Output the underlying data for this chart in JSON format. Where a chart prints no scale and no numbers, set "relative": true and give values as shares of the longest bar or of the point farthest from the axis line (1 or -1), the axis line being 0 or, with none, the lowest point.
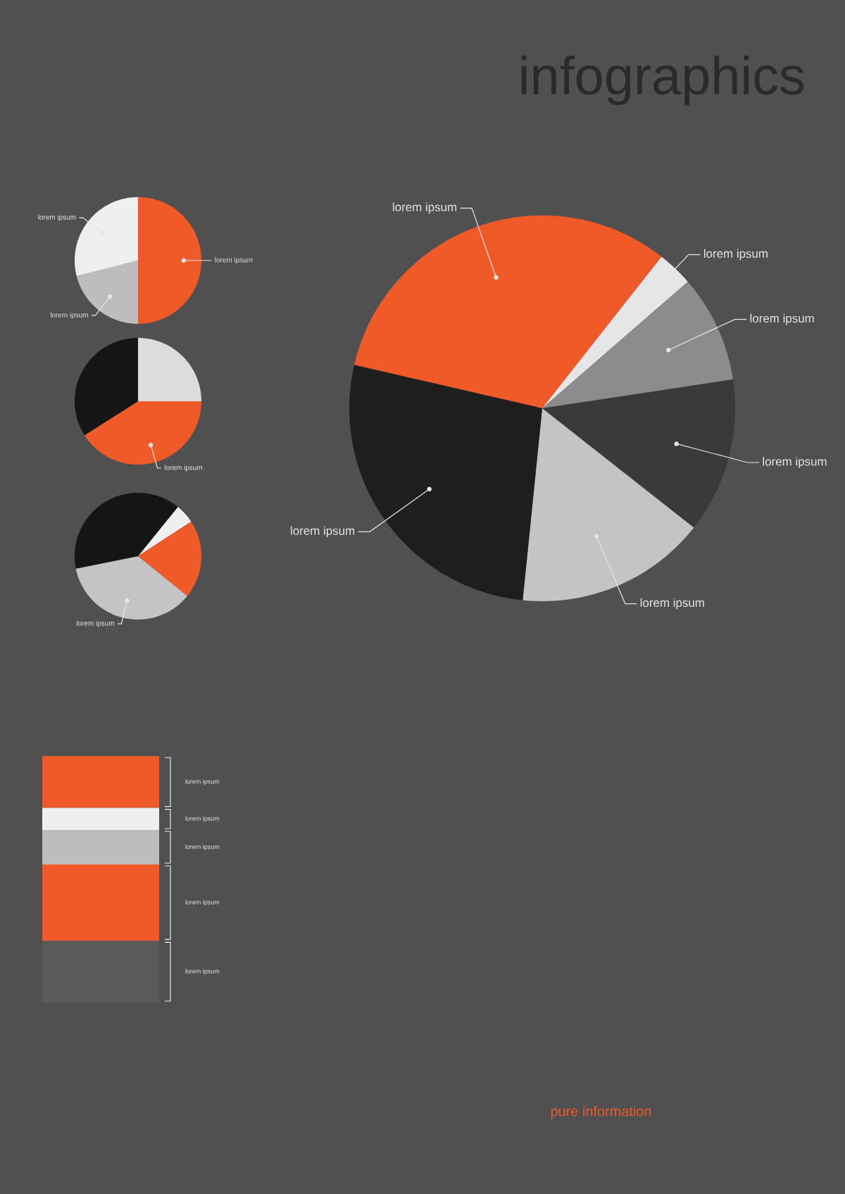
{
  "chart_data": [
    {
      "type": "pie",
      "title": "infographics",
      "categories": [
        "lorem ipsum",
        "lorem ipsum",
        "lorem ipsum",
        "lorem ipsum",
        "lorem ipsum",
        "lorem ipsum"
      ],
      "values": [
        32,
        3,
        9,
        13,
        16,
        27
      ],
      "colors": [
        "#f05a28",
        "#e6e6e6",
        "#8c8c8c",
        "#3a3a3a",
        "#c4c4c6",
        "#1e1e1e"
      ]
    },
    {
      "type": "pie",
      "categories": [
        "lorem ipsum",
        "lorem ipsum",
        "lorem ipsum"
      ],
      "values": [
        50,
        21,
        29
      ],
      "colors": [
        "#f05a28",
        "#bdbdbf",
        "#efefef"
      ]
    },
    {
      "type": "pie",
      "categories": [
        null,
        "lorem ipsum",
        null
      ],
      "values": [
        25,
        41,
        34
      ],
      "colors": [
        "#dcdcdc",
        "#f05a28",
        "#151515"
      ]
    },
    {
      "type": "pie",
      "categories": [
        null,
        null,
        "lorem ipsum",
        null
      ],
      "values": [
        5,
        20,
        36,
        39
      ],
      "colors": [
        "#efefef",
        "#f05a28",
        "#c4c4c6",
        "#151515"
      ]
    },
    {
      "type": "bar",
      "stacked": true,
      "relative": true,
      "categories": [
        null
      ],
      "annotations": [
        "pure information"
      ],
      "series": [
        {
          "name": "lorem ipsum",
          "color": "#5a5a5a",
          "values": [
            0.25
          ]
        },
        {
          "name": "lorem ipsum",
          "color": "#f05a28",
          "values": [
            0.31
          ]
        },
        {
          "name": "lorem ipsum",
          "color": "#bdbdbf",
          "values": [
            0.14
          ]
        },
        {
          "name": "lorem ipsum",
          "color": "#efefef",
          "values": [
            0.09
          ]
        },
        {
          "name": "lorem ipsum",
          "color": "#f05a28",
          "values": [
            0.21
          ]
        }
      ]
    }
  ]
}
